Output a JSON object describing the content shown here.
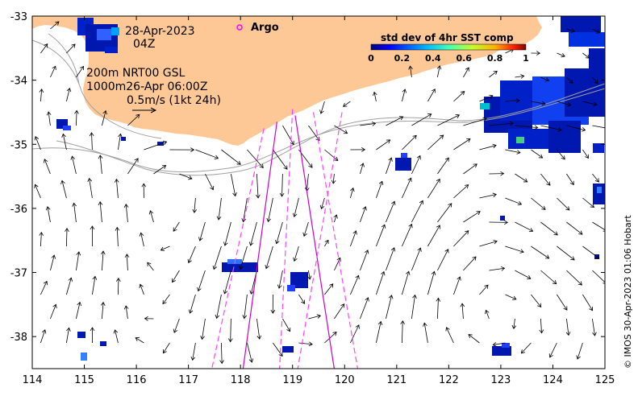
{
  "title": {
    "date": "28-Apr-2023",
    "hour": "04Z"
  },
  "product": {
    "line1": "200m  NRT00 GSL",
    "line2": "1000m26-Apr 06:00Z",
    "scale_label": "0.5m/s (1kt 24h)"
  },
  "legend": {
    "argo_label": "Argo",
    "argo_color": "#ff00ff",
    "colorbar_title": "std dev of 4hr SST comp",
    "colorbar_ticks": [
      "0",
      "0.2",
      "0.4",
      "0.6",
      "0.8",
      "1"
    ]
  },
  "credit": "© IMOS 30-Apr-2023 01:06 Hobart",
  "axes": {
    "x_ticks": [
      "114",
      "115",
      "116",
      "117",
      "118",
      "119",
      "120",
      "121",
      "122",
      "123",
      "124",
      "125"
    ],
    "y_ticks": [
      "-33",
      "-34",
      "-35",
      "-36",
      "-37",
      "-38"
    ],
    "lon_range": [
      114,
      125
    ],
    "lat_range": [
      -38.5,
      -33
    ]
  },
  "colors": {
    "land": "#fdc896",
    "track_solid": "#cc00cc",
    "track_dashed": "#ff44ff",
    "ssh_contour": "#a0a0a0",
    "current_arrow": "#000000"
  },
  "argo_tracks": [
    {
      "style": "solid",
      "points": [
        [
          119.05,
          -34.55
        ],
        [
          119.8,
          -38.5
        ]
      ]
    },
    {
      "style": "solid",
      "points": [
        [
          118.7,
          -34.65
        ],
        [
          118.05,
          -38.5
        ]
      ]
    },
    {
      "style": "dashed",
      "points": [
        [
          119.4,
          -34.5
        ],
        [
          120.25,
          -38.5
        ]
      ]
    },
    {
      "style": "dashed",
      "points": [
        [
          118.45,
          -34.75
        ],
        [
          117.45,
          -38.5
        ]
      ]
    },
    {
      "style": "dashed",
      "points": [
        [
          119.0,
          -34.45
        ],
        [
          118.75,
          -38.5
        ]
      ]
    },
    {
      "style": "dashed",
      "points": [
        [
          119.95,
          -34.5
        ],
        [
          119.1,
          -38.5
        ]
      ]
    }
  ]
}
